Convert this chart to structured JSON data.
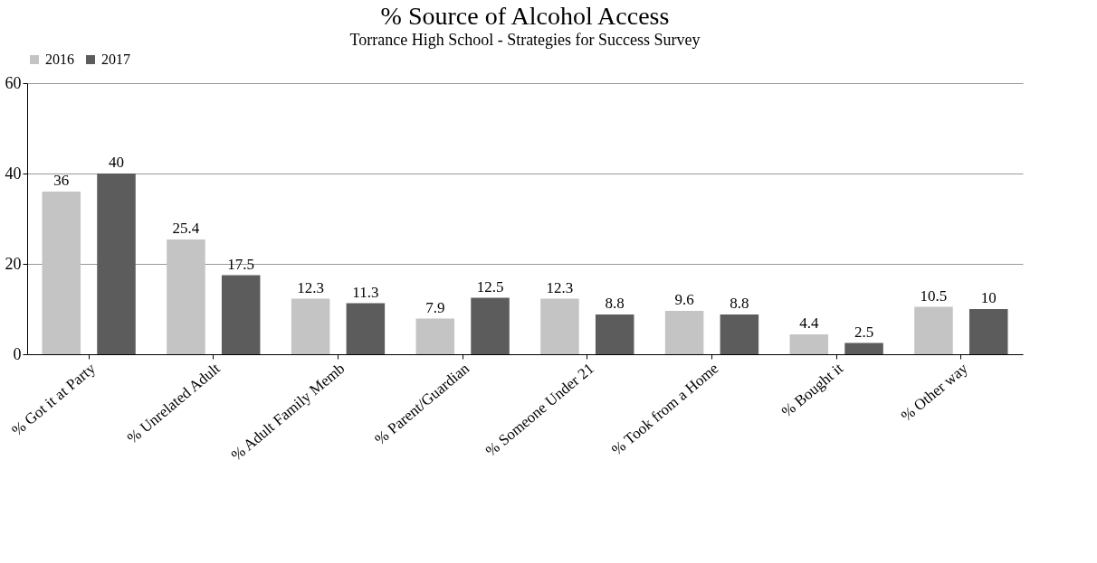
{
  "chart_data": {
    "type": "bar",
    "title": "% Source of Alcohol Access",
    "subtitle": "Torrance High School - Strategies for Success Survey",
    "categories": [
      "% Got it at Party",
      "% Unrelated Adult",
      "% Adult Family Memb",
      "% Parent/Guardian",
      "% Someone Under 21",
      "% Took from a Home",
      "% Bought it",
      "% Other way"
    ],
    "series": [
      {
        "name": "2016",
        "color": "#c4c4c4",
        "values": [
          36,
          25.4,
          12.3,
          7.9,
          12.3,
          9.6,
          4.4,
          10.5
        ]
      },
      {
        "name": "2017",
        "color": "#5c5c5c",
        "values": [
          40,
          17.5,
          11.3,
          12.5,
          8.8,
          8.8,
          2.5,
          10
        ]
      }
    ],
    "ylim": [
      0,
      60
    ],
    "yticks": [
      0,
      20,
      40,
      60
    ],
    "grid": "y",
    "legend": "top",
    "data_labels": true
  }
}
